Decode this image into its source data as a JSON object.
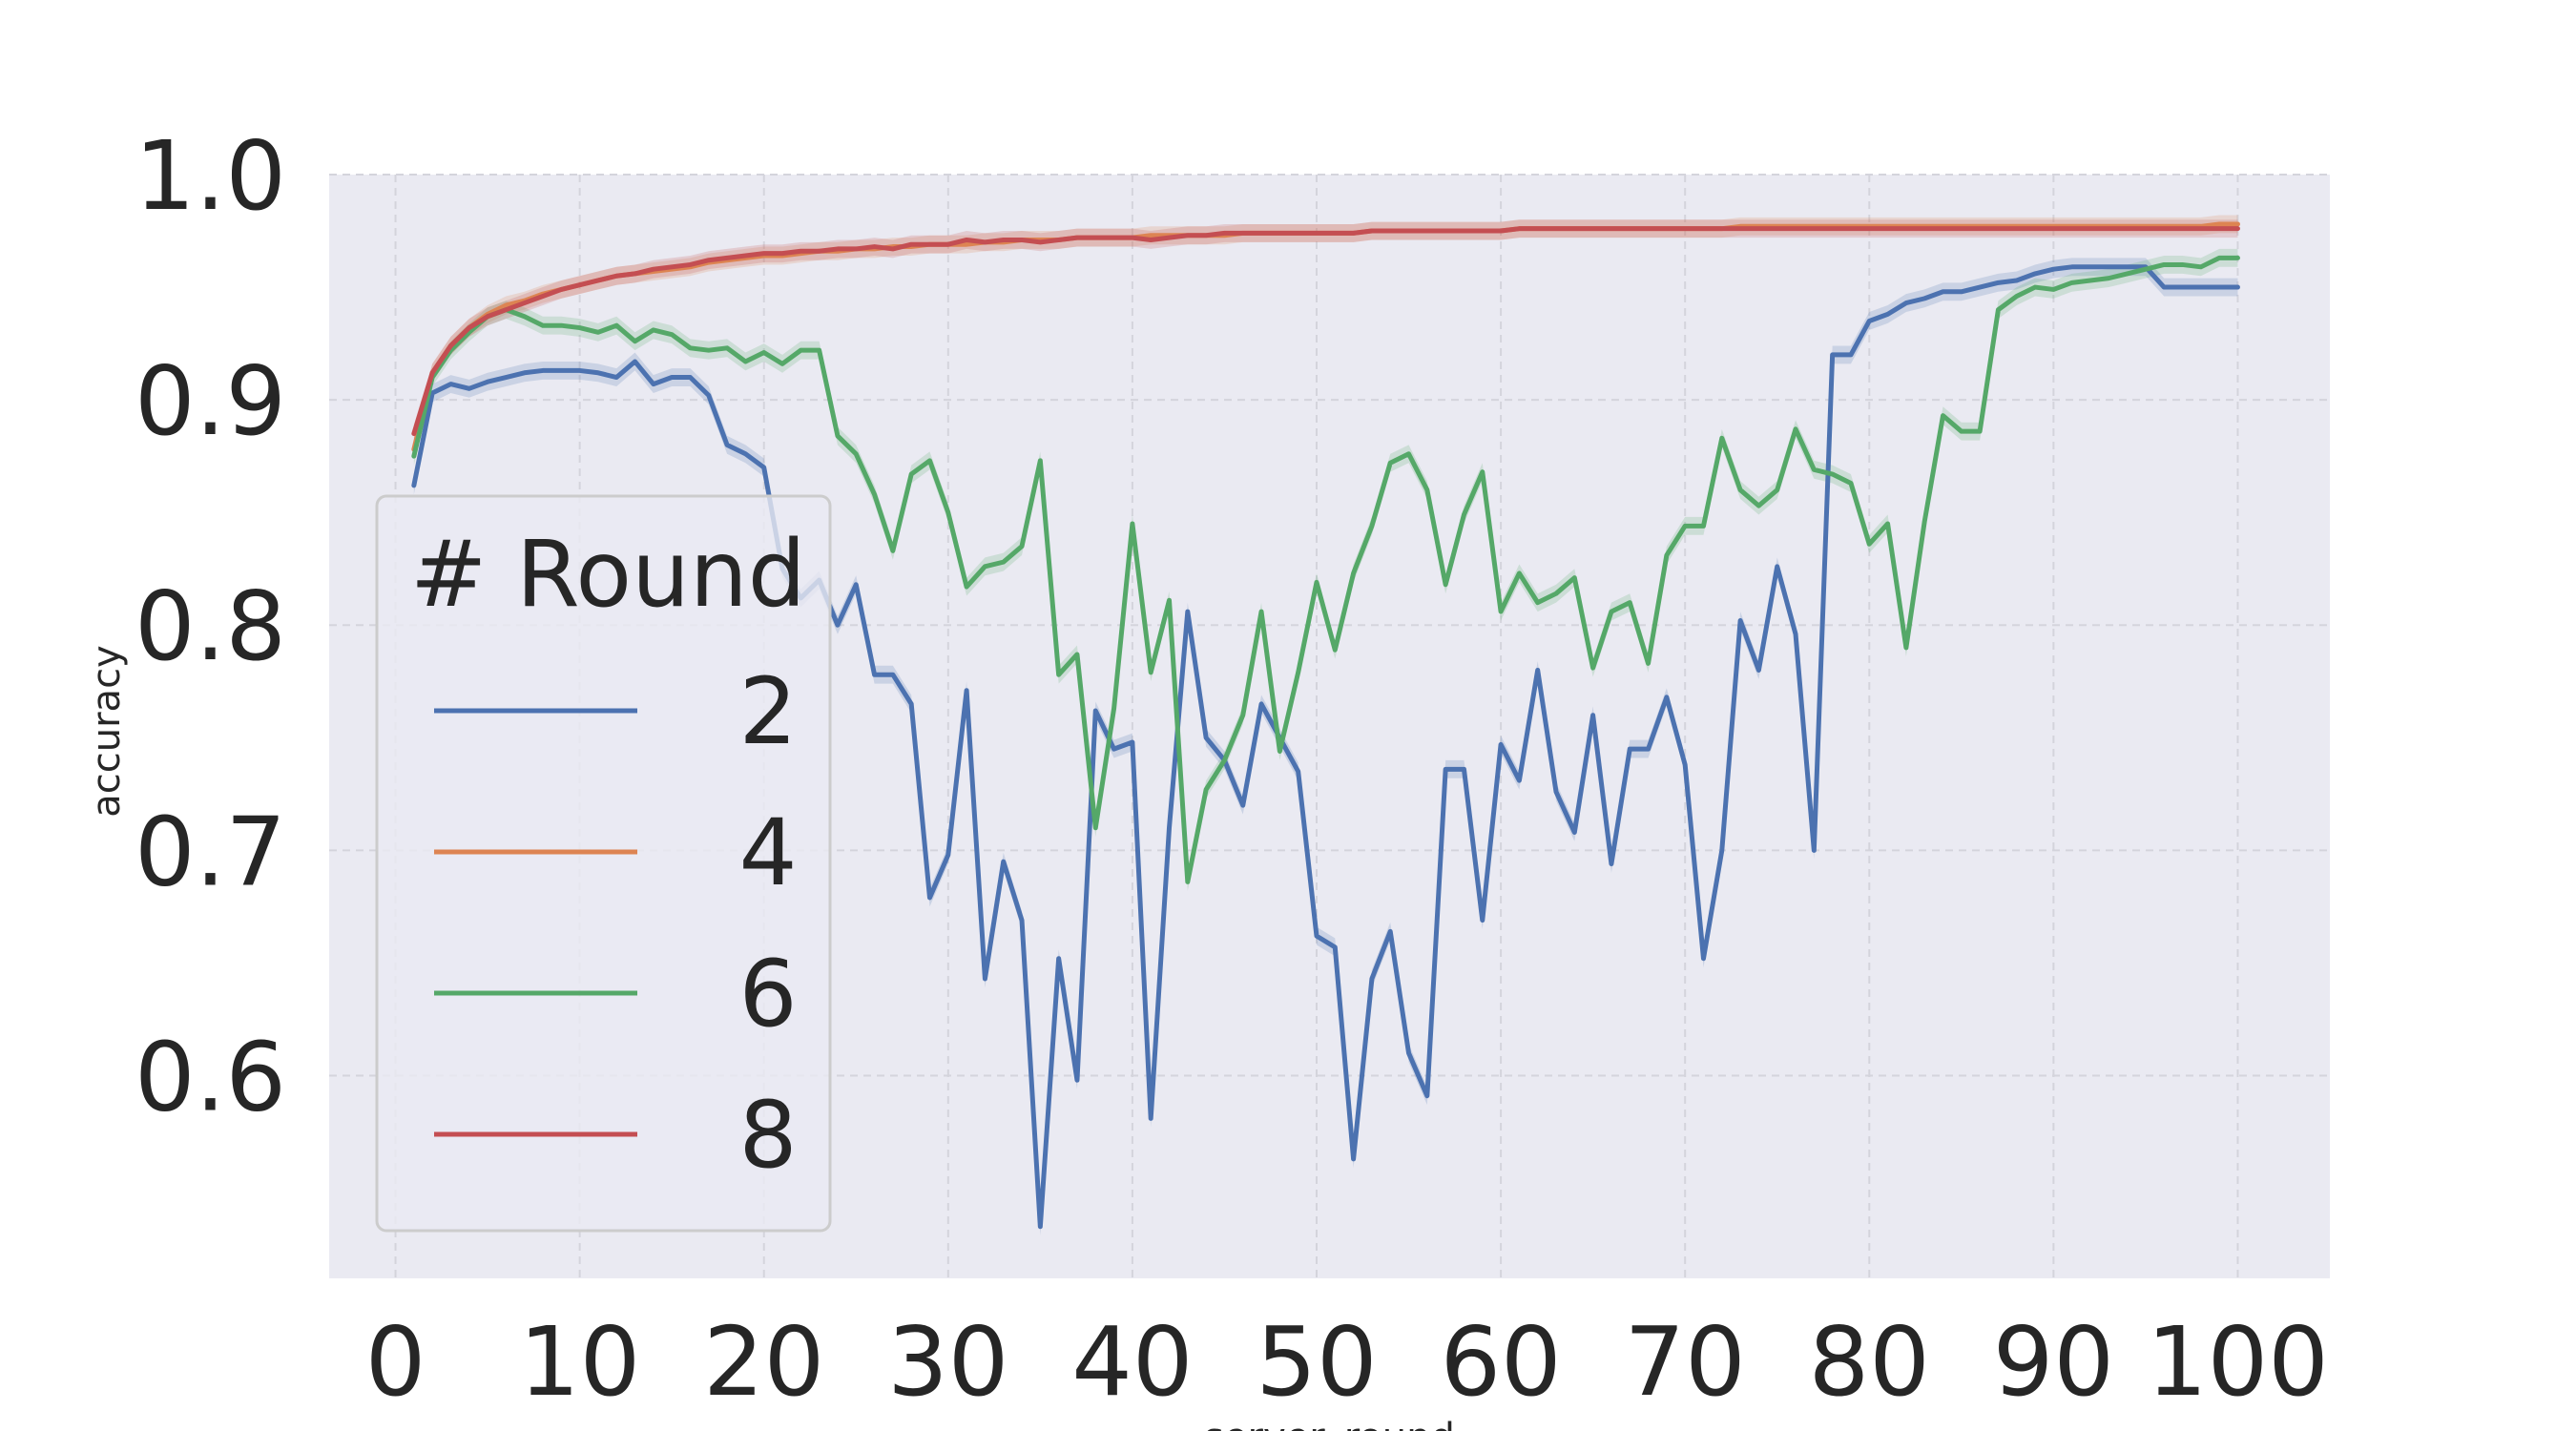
{
  "chart_data": {
    "type": "line",
    "xlabel": "server_round",
    "ylabel": "accuracy",
    "xlim": [
      -3.6,
      105
    ],
    "ylim": [
      0.51,
      1.0
    ],
    "xticks": [
      0,
      10,
      20,
      30,
      40,
      50,
      60,
      70,
      80,
      90,
      100
    ],
    "xtick_labels": [
      "0",
      "10",
      "20",
      "30",
      "40",
      "50",
      "60",
      "70",
      "80",
      "90",
      "100"
    ],
    "yticks": [
      0.6,
      0.7,
      0.8,
      0.9,
      1.0
    ],
    "ytick_labels": [
      "0.6",
      "0.7",
      "0.8",
      "0.9",
      "1.0"
    ],
    "grid": true,
    "legend": {
      "title": "# Round",
      "placement": "center-left"
    },
    "series": [
      {
        "name": "2",
        "color": "#4c72b0",
        "x": [
          1,
          2,
          3,
          4,
          5,
          6,
          7,
          8,
          9,
          10,
          11,
          12,
          13,
          14,
          15,
          16,
          17,
          18,
          19,
          20,
          21,
          22,
          23,
          24,
          25,
          26,
          27,
          28,
          29,
          30,
          31,
          32,
          33,
          34,
          35,
          36,
          37,
          38,
          39,
          40,
          41,
          42,
          43,
          44,
          45,
          46,
          47,
          48,
          49,
          50,
          51,
          52,
          53,
          54,
          55,
          56,
          57,
          58,
          59,
          60,
          61,
          62,
          63,
          64,
          65,
          66,
          67,
          68,
          69,
          70,
          71,
          72,
          73,
          74,
          75,
          76,
          77,
          78,
          79,
          80,
          81,
          82,
          83,
          84,
          85,
          86,
          87,
          88,
          89,
          90,
          91,
          92,
          93,
          94,
          95,
          96,
          97,
          98,
          99,
          100
        ],
        "values": [
          0.862,
          0.903,
          0.907,
          0.905,
          0.908,
          0.91,
          0.912,
          0.913,
          0.913,
          0.913,
          0.912,
          0.91,
          0.917,
          0.907,
          0.91,
          0.91,
          0.902,
          0.88,
          0.876,
          0.87,
          0.825,
          0.812,
          0.82,
          0.8,
          0.818,
          0.778,
          0.778,
          0.765,
          0.679,
          0.698,
          0.771,
          0.643,
          0.695,
          0.669,
          0.533,
          0.652,
          0.598,
          0.762,
          0.745,
          0.748,
          0.581,
          0.71,
          0.806,
          0.75,
          0.74,
          0.72,
          0.765,
          0.75,
          0.735,
          0.662,
          0.657,
          0.563,
          0.643,
          0.664,
          0.61,
          0.591,
          0.736,
          0.736,
          0.669,
          0.747,
          0.731,
          0.78,
          0.726,
          0.708,
          0.76,
          0.694,
          0.745,
          0.745,
          0.768,
          0.738,
          0.652,
          0.7,
          0.802,
          0.78,
          0.826,
          0.796,
          0.7,
          0.92,
          0.92,
          0.935,
          0.938,
          0.943,
          0.945,
          0.948,
          0.948,
          0.95,
          0.952,
          0.953,
          0.956,
          0.958,
          0.959,
          0.959,
          0.959,
          0.959,
          0.959,
          0.95,
          0.95,
          0.95,
          0.95,
          0.95
        ]
      },
      {
        "name": "4",
        "color": "#dd8452",
        "x": [
          1,
          2,
          3,
          4,
          5,
          6,
          7,
          8,
          9,
          10,
          11,
          12,
          13,
          14,
          15,
          16,
          17,
          18,
          19,
          20,
          21,
          22,
          23,
          24,
          25,
          26,
          27,
          28,
          29,
          30,
          31,
          32,
          33,
          34,
          35,
          36,
          37,
          38,
          39,
          40,
          41,
          42,
          43,
          44,
          45,
          46,
          47,
          48,
          49,
          50,
          51,
          52,
          53,
          54,
          55,
          56,
          57,
          58,
          59,
          60,
          61,
          62,
          63,
          64,
          65,
          66,
          67,
          68,
          69,
          70,
          71,
          72,
          73,
          74,
          75,
          76,
          77,
          78,
          79,
          80,
          81,
          82,
          83,
          84,
          85,
          86,
          87,
          88,
          89,
          90,
          91,
          92,
          93,
          94,
          95,
          96,
          97,
          98,
          99,
          100
        ],
        "values": [
          0.878,
          0.912,
          0.924,
          0.932,
          0.938,
          0.942,
          0.944,
          0.947,
          0.949,
          0.951,
          0.953,
          0.955,
          0.956,
          0.957,
          0.958,
          0.959,
          0.961,
          0.962,
          0.963,
          0.964,
          0.964,
          0.965,
          0.966,
          0.966,
          0.967,
          0.967,
          0.968,
          0.968,
          0.969,
          0.969,
          0.969,
          0.97,
          0.97,
          0.971,
          0.971,
          0.971,
          0.972,
          0.972,
          0.972,
          0.972,
          0.973,
          0.973,
          0.973,
          0.973,
          0.973,
          0.974,
          0.974,
          0.974,
          0.974,
          0.974,
          0.974,
          0.974,
          0.975,
          0.975,
          0.975,
          0.975,
          0.975,
          0.975,
          0.975,
          0.975,
          0.976,
          0.976,
          0.976,
          0.976,
          0.976,
          0.976,
          0.976,
          0.976,
          0.976,
          0.976,
          0.976,
          0.976,
          0.977,
          0.977,
          0.977,
          0.977,
          0.977,
          0.977,
          0.977,
          0.977,
          0.977,
          0.977,
          0.977,
          0.977,
          0.977,
          0.977,
          0.977,
          0.977,
          0.977,
          0.977,
          0.977,
          0.977,
          0.977,
          0.977,
          0.977,
          0.977,
          0.977,
          0.977,
          0.978,
          0.978
        ]
      },
      {
        "name": "6",
        "color": "#55a868",
        "x": [
          1,
          2,
          3,
          4,
          5,
          6,
          7,
          8,
          9,
          10,
          11,
          12,
          13,
          14,
          15,
          16,
          17,
          18,
          19,
          20,
          21,
          22,
          23,
          24,
          25,
          26,
          27,
          28,
          29,
          30,
          31,
          32,
          33,
          34,
          35,
          36,
          37,
          38,
          39,
          40,
          41,
          42,
          43,
          44,
          45,
          46,
          47,
          48,
          49,
          50,
          51,
          52,
          53,
          54,
          55,
          56,
          57,
          58,
          59,
          60,
          61,
          62,
          63,
          64,
          65,
          66,
          67,
          68,
          69,
          70,
          71,
          72,
          73,
          74,
          75,
          76,
          77,
          78,
          79,
          80,
          81,
          82,
          83,
          84,
          85,
          86,
          87,
          88,
          89,
          90,
          91,
          92,
          93,
          94,
          95,
          96,
          97,
          98,
          99,
          100
        ],
        "values": [
          0.875,
          0.91,
          0.922,
          0.93,
          0.937,
          0.94,
          0.937,
          0.933,
          0.933,
          0.932,
          0.93,
          0.933,
          0.926,
          0.931,
          0.929,
          0.923,
          0.922,
          0.923,
          0.917,
          0.921,
          0.916,
          0.922,
          0.922,
          0.884,
          0.876,
          0.858,
          0.833,
          0.867,
          0.873,
          0.85,
          0.817,
          0.826,
          0.828,
          0.835,
          0.873,
          0.778,
          0.787,
          0.71,
          0.763,
          0.845,
          0.779,
          0.811,
          0.686,
          0.727,
          0.74,
          0.76,
          0.806,
          0.744,
          0.779,
          0.819,
          0.789,
          0.823,
          0.844,
          0.872,
          0.876,
          0.86,
          0.818,
          0.849,
          0.868,
          0.806,
          0.823,
          0.81,
          0.814,
          0.821,
          0.781,
          0.806,
          0.81,
          0.783,
          0.831,
          0.844,
          0.844,
          0.883,
          0.86,
          0.853,
          0.86,
          0.887,
          0.869,
          0.867,
          0.863,
          0.836,
          0.845,
          0.79,
          0.846,
          0.893,
          0.886,
          0.886,
          0.94,
          0.946,
          0.95,
          0.949,
          0.952,
          0.953,
          0.954,
          0.956,
          0.958,
          0.96,
          0.96,
          0.959,
          0.963,
          0.963
        ]
      },
      {
        "name": "8",
        "color": "#c44e52",
        "x": [
          1,
          2,
          3,
          4,
          5,
          6,
          7,
          8,
          9,
          10,
          11,
          12,
          13,
          14,
          15,
          16,
          17,
          18,
          19,
          20,
          21,
          22,
          23,
          24,
          25,
          26,
          27,
          28,
          29,
          30,
          31,
          32,
          33,
          34,
          35,
          36,
          37,
          38,
          39,
          40,
          41,
          42,
          43,
          44,
          45,
          46,
          47,
          48,
          49,
          50,
          51,
          52,
          53,
          54,
          55,
          56,
          57,
          58,
          59,
          60,
          61,
          62,
          63,
          64,
          65,
          66,
          67,
          68,
          69,
          70,
          71,
          72,
          73,
          74,
          75,
          76,
          77,
          78,
          79,
          80,
          81,
          82,
          83,
          84,
          85,
          86,
          87,
          88,
          89,
          90,
          91,
          92,
          93,
          94,
          95,
          96,
          97,
          98,
          99,
          100
        ],
        "values": [
          0.885,
          0.912,
          0.924,
          0.932,
          0.937,
          0.94,
          0.943,
          0.946,
          0.949,
          0.951,
          0.953,
          0.955,
          0.956,
          0.958,
          0.959,
          0.96,
          0.962,
          0.963,
          0.964,
          0.965,
          0.965,
          0.966,
          0.966,
          0.967,
          0.967,
          0.968,
          0.967,
          0.969,
          0.969,
          0.969,
          0.971,
          0.97,
          0.971,
          0.971,
          0.97,
          0.971,
          0.972,
          0.972,
          0.972,
          0.972,
          0.971,
          0.972,
          0.973,
          0.973,
          0.974,
          0.974,
          0.974,
          0.974,
          0.974,
          0.974,
          0.974,
          0.974,
          0.975,
          0.975,
          0.975,
          0.975,
          0.975,
          0.975,
          0.975,
          0.975,
          0.976,
          0.976,
          0.976,
          0.976,
          0.976,
          0.976,
          0.976,
          0.976,
          0.976,
          0.976,
          0.976,
          0.976,
          0.976,
          0.976,
          0.976,
          0.976,
          0.976,
          0.976,
          0.976,
          0.976,
          0.976,
          0.976,
          0.976,
          0.976,
          0.976,
          0.976,
          0.976,
          0.976,
          0.976,
          0.976,
          0.976,
          0.976,
          0.976,
          0.976,
          0.976,
          0.976,
          0.976,
          0.976,
          0.976,
          0.976
        ]
      }
    ]
  }
}
